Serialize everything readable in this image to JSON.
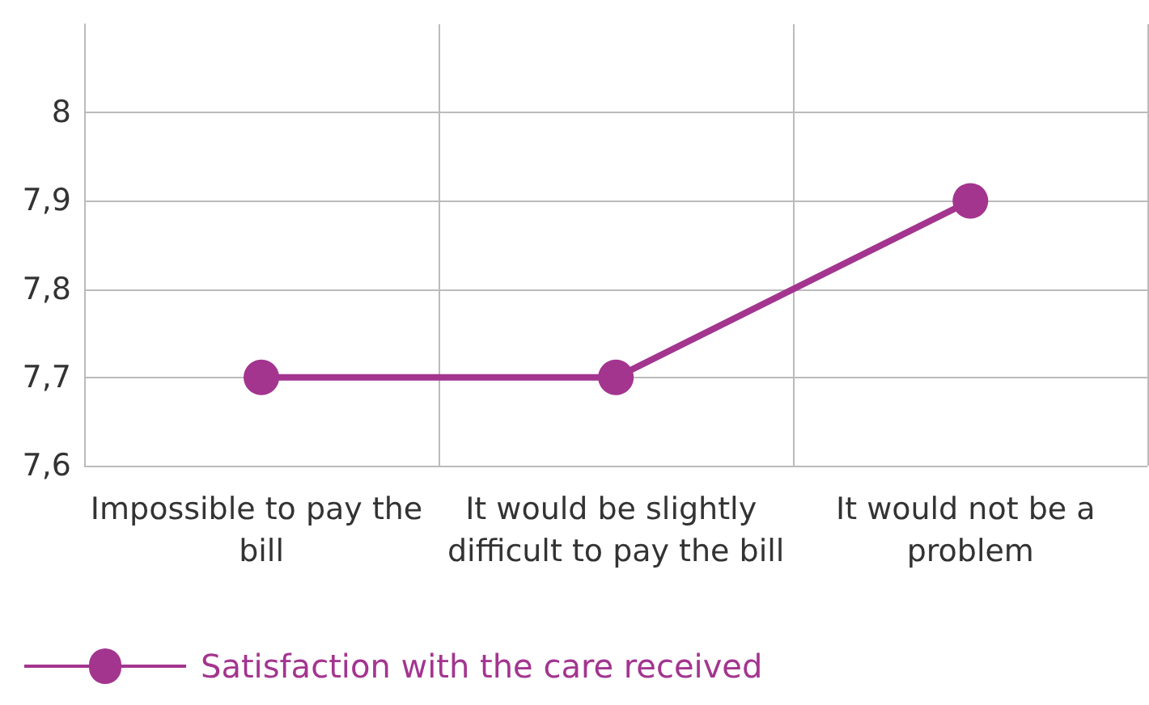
{
  "chart_data": {
    "type": "line",
    "categories": [
      "Impossible to pay the bill",
      "It would be slightly difficult to pay the bill",
      "It would not be a problem"
    ],
    "series": [
      {
        "name": "Satisfaction with the care received",
        "color": "#a3358f",
        "values": [
          7.7,
          7.7,
          7.9
        ]
      }
    ],
    "ylim": [
      7.6,
      8.1
    ],
    "yticks": [
      {
        "value": 7.6,
        "label": "7,6"
      },
      {
        "value": 7.7,
        "label": "7,7"
      },
      {
        "value": 7.8,
        "label": "7,8"
      },
      {
        "value": 7.9,
        "label": "7,9"
      },
      8
    ],
    "grid": true,
    "legend": "bottom left",
    "marker": "circle",
    "line_style": "solid"
  }
}
